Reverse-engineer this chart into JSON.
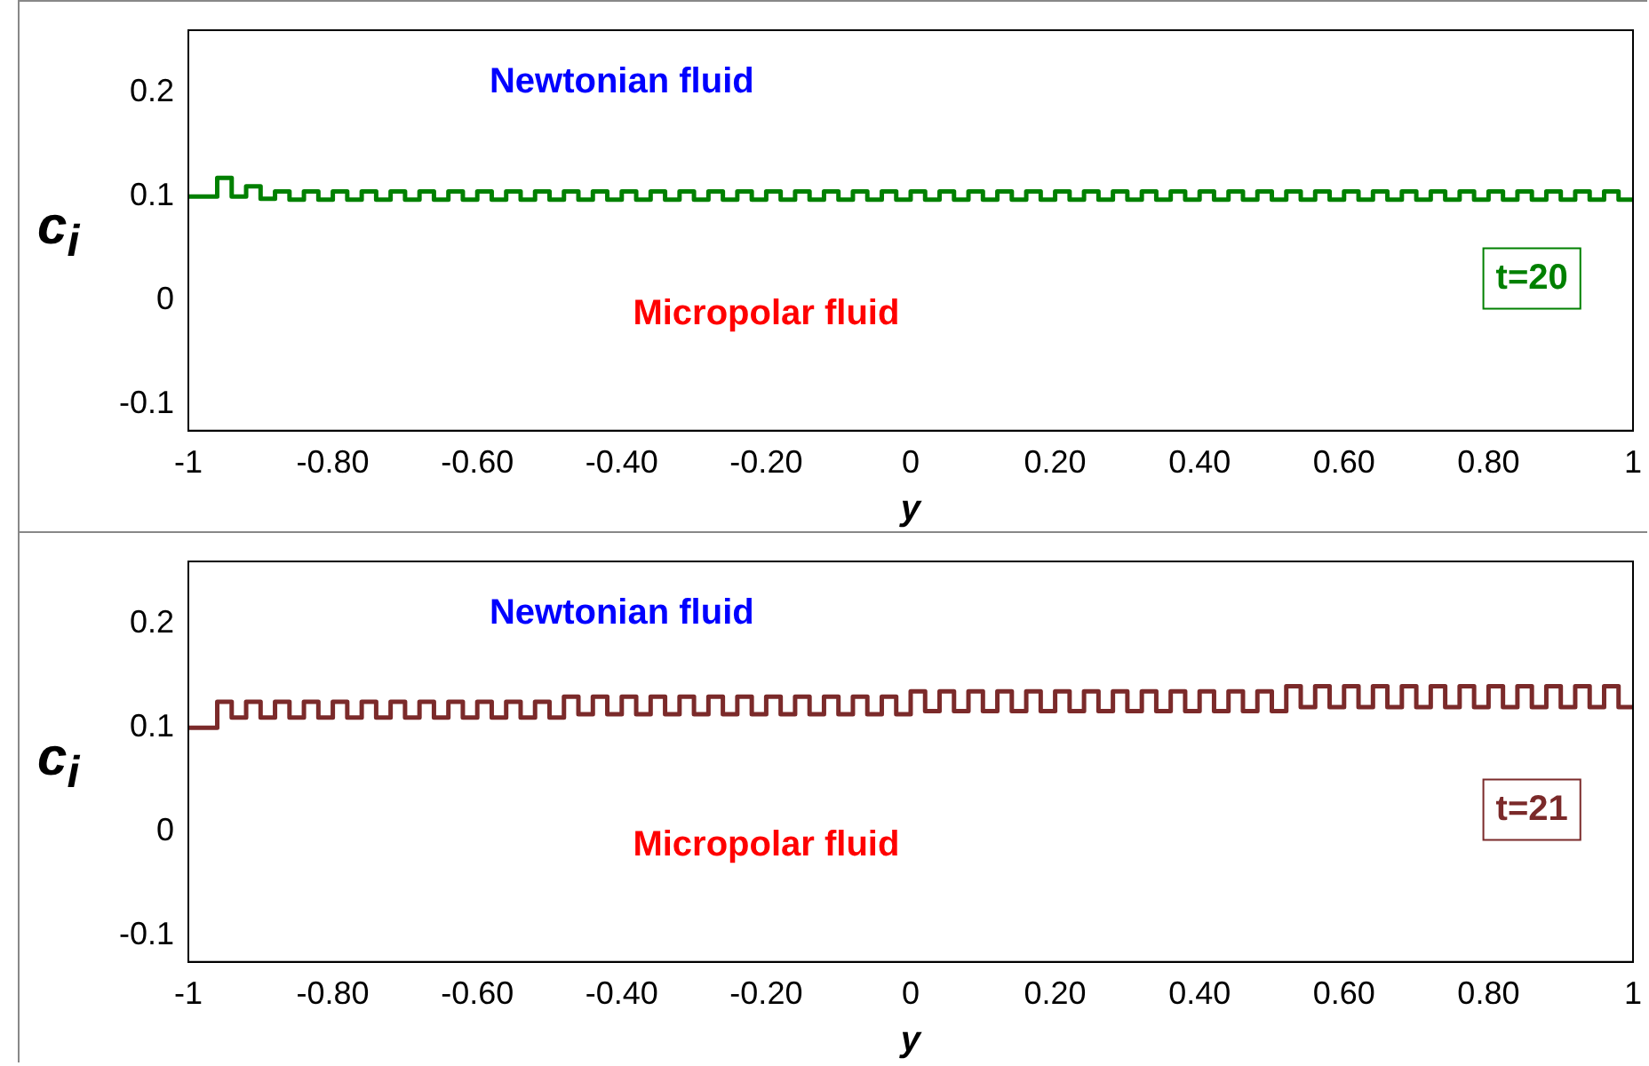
{
  "chart_data": [
    {
      "type": "step",
      "xlabel": "y",
      "ylabel": "c$_{i}$",
      "xlim": [
        -1,
        1
      ],
      "ylim": [
        -0.125,
        0.26
      ],
      "xticks": [
        -1,
        {
          "value": -0.8,
          "label": "-0.80"
        },
        {
          "value": -0.6,
          "label": "-0.60"
        },
        {
          "value": -0.4,
          "label": "-0.40"
        },
        {
          "value": -0.2,
          "label": "-0.20"
        },
        0,
        {
          "value": 0.2,
          "label": "0.20"
        },
        {
          "value": 0.4,
          "label": "0.40"
        },
        {
          "value": 0.6,
          "label": "0.60"
        },
        {
          "value": 0.8,
          "label": "0.80"
        },
        1
      ],
      "yticks": [
        -0.1,
        0,
        0.1,
        0.2
      ],
      "grid": false,
      "legend": false,
      "annotations": [
        "Newtonian fluid",
        "Micropolar fluid",
        "t=20"
      ],
      "x": [
        -1,
        -0.96,
        -0.94,
        -0.92,
        -0.9,
        -0.88,
        -0.86,
        -0.84,
        -0.82,
        -0.8,
        -0.78,
        -0.76,
        -0.74,
        -0.72,
        -0.7,
        -0.68,
        -0.66,
        -0.64,
        -0.62,
        -0.6,
        -0.58,
        -0.56,
        -0.54,
        -0.52,
        -0.5,
        -0.48,
        -0.46,
        -0.44,
        -0.42,
        -0.4,
        -0.38,
        -0.36,
        -0.34,
        -0.32,
        -0.3,
        -0.28,
        -0.26,
        -0.24,
        -0.22,
        -0.2,
        -0.18,
        -0.16,
        -0.14,
        -0.12,
        -0.1,
        -0.08,
        -0.06,
        -0.04,
        -0.02,
        0,
        0.02,
        0.04,
        0.06,
        0.08,
        0.1,
        0.12,
        0.14,
        0.16,
        0.18,
        0.2,
        0.22,
        0.24,
        0.26,
        0.28,
        0.3,
        0.32,
        0.34,
        0.36,
        0.38,
        0.4,
        0.42,
        0.44,
        0.46,
        0.48,
        0.5,
        0.52,
        0.54,
        0.56,
        0.58,
        0.6,
        0.62,
        0.64,
        0.66,
        0.68,
        0.7,
        0.72,
        0.74,
        0.76,
        0.78,
        0.8,
        0.82,
        0.84,
        0.86,
        0.88,
        0.9,
        0.92,
        0.94,
        0.96,
        0.98,
        1
      ],
      "series": [
        {
          "color": "#008000",
          "values": [
            0.1,
            0.118,
            0.1,
            0.11,
            0.098,
            0.105,
            0.097,
            0.105,
            0.097,
            0.105,
            0.097,
            0.105,
            0.097,
            0.105,
            0.097,
            0.105,
            0.097,
            0.105,
            0.097,
            0.105,
            0.097,
            0.105,
            0.097,
            0.105,
            0.097,
            0.105,
            0.097,
            0.105,
            0.097,
            0.105,
            0.097,
            0.105,
            0.097,
            0.105,
            0.097,
            0.105,
            0.097,
            0.105,
            0.097,
            0.105,
            0.097,
            0.105,
            0.097,
            0.105,
            0.097,
            0.105,
            0.097,
            0.105,
            0.097,
            0.105,
            0.097,
            0.105,
            0.097,
            0.105,
            0.097,
            0.105,
            0.097,
            0.105,
            0.097,
            0.105,
            0.097,
            0.105,
            0.097,
            0.105,
            0.097,
            0.105,
            0.097,
            0.105,
            0.097,
            0.105,
            0.097,
            0.105,
            0.097,
            0.105,
            0.097,
            0.105,
            0.097,
            0.105,
            0.097,
            0.105,
            0.097,
            0.105,
            0.097,
            0.105,
            0.097,
            0.105,
            0.097,
            0.105,
            0.097,
            0.105,
            0.097,
            0.105,
            0.097,
            0.105,
            0.097,
            0.105,
            0.097,
            0.105,
            0.097,
            0.097
          ]
        }
      ]
    },
    {
      "type": "step",
      "xlabel": "y",
      "ylabel": "c$_{i}$",
      "xlim": [
        -1,
        1
      ],
      "ylim": [
        -0.125,
        0.26
      ],
      "xticks": [
        -1,
        {
          "value": -0.8,
          "label": "-0.80"
        },
        {
          "value": -0.6,
          "label": "-0.60"
        },
        {
          "value": -0.4,
          "label": "-0.40"
        },
        {
          "value": -0.2,
          "label": "-0.20"
        },
        0,
        {
          "value": 0.2,
          "label": "0.20"
        },
        {
          "value": 0.4,
          "label": "0.40"
        },
        {
          "value": 0.6,
          "label": "0.60"
        },
        {
          "value": 0.8,
          "label": "0.80"
        },
        1
      ],
      "yticks": [
        -0.1,
        0,
        0.1,
        0.2
      ],
      "grid": false,
      "legend": false,
      "annotations": [
        "Newtonian fluid",
        "Micropolar fluid",
        "t=21"
      ],
      "x": [
        -1,
        -0.96,
        -0.94,
        -0.92,
        -0.9,
        -0.88,
        -0.86,
        -0.84,
        -0.82,
        -0.8,
        -0.78,
        -0.76,
        -0.74,
        -0.72,
        -0.7,
        -0.68,
        -0.66,
        -0.64,
        -0.62,
        -0.6,
        -0.58,
        -0.56,
        -0.54,
        -0.52,
        -0.5,
        -0.48,
        -0.46,
        -0.44,
        -0.42,
        -0.4,
        -0.38,
        -0.36,
        -0.34,
        -0.32,
        -0.3,
        -0.28,
        -0.26,
        -0.24,
        -0.22,
        -0.2,
        -0.18,
        -0.16,
        -0.14,
        -0.12,
        -0.1,
        -0.08,
        -0.06,
        -0.04,
        -0.02,
        0,
        0.02,
        0.04,
        0.06,
        0.08,
        0.1,
        0.12,
        0.14,
        0.16,
        0.18,
        0.2,
        0.22,
        0.24,
        0.26,
        0.28,
        0.3,
        0.32,
        0.34,
        0.36,
        0.38,
        0.4,
        0.42,
        0.44,
        0.46,
        0.48,
        0.5,
        0.52,
        0.54,
        0.56,
        0.58,
        0.6,
        0.62,
        0.64,
        0.66,
        0.68,
        0.7,
        0.72,
        0.74,
        0.76,
        0.78,
        0.8,
        0.82,
        0.84,
        0.86,
        0.88,
        0.9,
        0.92,
        0.94,
        0.96,
        0.98,
        1
      ],
      "series": [
        {
          "color": "#7b2a2a",
          "values": [
            0.1,
            0.125,
            0.11,
            0.125,
            0.11,
            0.125,
            0.11,
            0.125,
            0.11,
            0.125,
            0.11,
            0.125,
            0.11,
            0.125,
            0.11,
            0.125,
            0.11,
            0.125,
            0.11,
            0.125,
            0.11,
            0.125,
            0.11,
            0.125,
            0.11,
            0.13,
            0.113,
            0.13,
            0.113,
            0.13,
            0.113,
            0.13,
            0.113,
            0.13,
            0.113,
            0.13,
            0.113,
            0.13,
            0.113,
            0.13,
            0.113,
            0.13,
            0.113,
            0.13,
            0.113,
            0.13,
            0.113,
            0.13,
            0.113,
            0.135,
            0.116,
            0.135,
            0.116,
            0.135,
            0.116,
            0.135,
            0.116,
            0.135,
            0.116,
            0.135,
            0.116,
            0.135,
            0.116,
            0.135,
            0.116,
            0.135,
            0.116,
            0.135,
            0.116,
            0.135,
            0.116,
            0.135,
            0.116,
            0.135,
            0.116,
            0.14,
            0.12,
            0.14,
            0.12,
            0.14,
            0.12,
            0.14,
            0.12,
            0.14,
            0.12,
            0.14,
            0.12,
            0.14,
            0.12,
            0.14,
            0.12,
            0.14,
            0.12,
            0.14,
            0.12,
            0.14,
            0.12,
            0.14,
            0.12,
            0.12
          ]
        }
      ]
    }
  ]
}
